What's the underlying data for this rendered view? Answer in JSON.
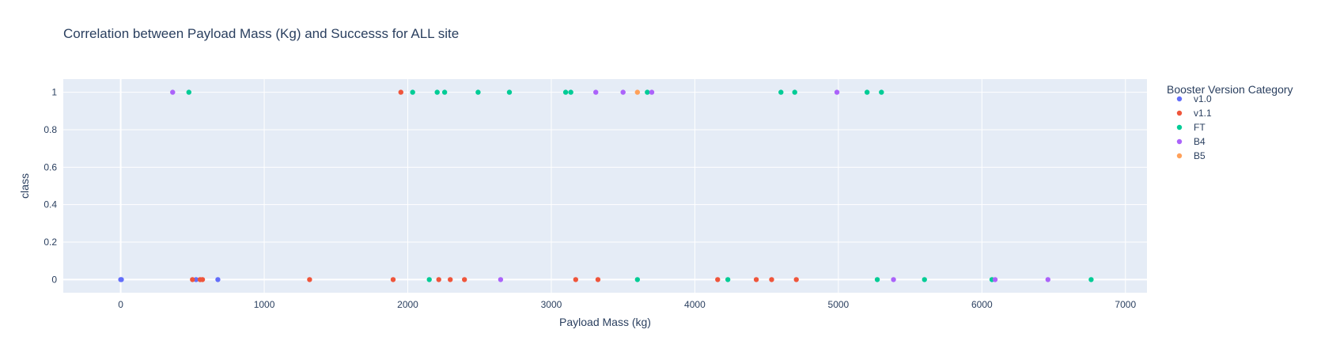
{
  "chart_data": {
    "type": "scatter",
    "title": "Correlation between Payload Mass (Kg) and Successs for ALL site",
    "xlabel": "Payload Mass (kg)",
    "ylabel": "class",
    "xlim": [
      -400,
      7150
    ],
    "ylim": [
      -0.07,
      1.07
    ],
    "x_ticks": [
      0,
      1000,
      2000,
      3000,
      4000,
      5000,
      6000,
      7000
    ],
    "y_ticks": [
      0,
      0.2,
      0.4,
      0.6,
      0.8,
      1
    ],
    "grid": true,
    "legend": {
      "title": "Booster Version Category",
      "placement": "right"
    },
    "series": [
      {
        "name": "v1.0",
        "color": "#636efa",
        "points": [
          [
            0,
            0
          ],
          [
            5,
            0
          ],
          [
            525,
            0
          ],
          [
            677,
            0
          ]
        ]
      },
      {
        "name": "v1.1",
        "color": "#ef553b",
        "points": [
          [
            500,
            0
          ],
          [
            553,
            0
          ],
          [
            570,
            0
          ],
          [
            1316,
            0
          ],
          [
            1898,
            0
          ],
          [
            1952,
            1
          ],
          [
            2216,
            0
          ],
          [
            2296,
            0
          ],
          [
            2395,
            0
          ],
          [
            3170,
            0
          ],
          [
            3325,
            0
          ],
          [
            4159,
            0
          ],
          [
            4428,
            0
          ],
          [
            4535,
            0
          ],
          [
            4707,
            0
          ]
        ]
      },
      {
        "name": "FT",
        "color": "#00cc96",
        "points": [
          [
            475,
            1
          ],
          [
            2034,
            1
          ],
          [
            2150,
            0
          ],
          [
            2205,
            1
          ],
          [
            2257,
            1
          ],
          [
            2490,
            1
          ],
          [
            2708,
            1
          ],
          [
            3100,
            1
          ],
          [
            3136,
            1
          ],
          [
            3600,
            0
          ],
          [
            3669,
            1
          ],
          [
            4230,
            0
          ],
          [
            4600,
            1
          ],
          [
            4696,
            1
          ],
          [
            5200,
            1
          ],
          [
            5271,
            0
          ],
          [
            5300,
            1
          ],
          [
            5600,
            0
          ],
          [
            6070,
            0
          ],
          [
            6761,
            0
          ]
        ]
      },
      {
        "name": "B4",
        "color": "#ab63fa",
        "points": [
          [
            362,
            1
          ],
          [
            2647,
            0
          ],
          [
            3310,
            1
          ],
          [
            3500,
            1
          ],
          [
            3700,
            1
          ],
          [
            4990,
            1
          ],
          [
            5384,
            0
          ],
          [
            6092,
            0
          ],
          [
            6460,
            0
          ]
        ]
      },
      {
        "name": "B5",
        "color": "#ffa15a",
        "points": [
          [
            3600,
            1
          ]
        ]
      }
    ]
  }
}
